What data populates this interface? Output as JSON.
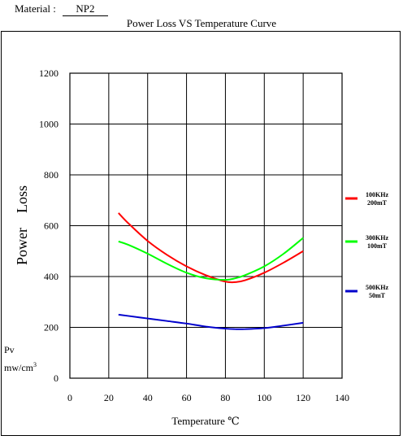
{
  "header": {
    "material_label": "Material :",
    "material_value": "NP2"
  },
  "chart_data": {
    "type": "line",
    "title": "Power Loss VS Temperature  Curve",
    "xlabel": "Temperature  ℃",
    "ylabel": "Power    Loss",
    "y_unit_line1": "Pv",
    "y_unit_line2": "mw/cm",
    "y_unit_sup": "3",
    "xlim": [
      0,
      140
    ],
    "ylim": [
      0,
      1200
    ],
    "x_ticks": [
      0,
      20,
      40,
      60,
      80,
      100,
      120,
      140
    ],
    "y_ticks": [
      0,
      200,
      400,
      600,
      800,
      1000,
      1200
    ],
    "grid": true,
    "legend_position": "right",
    "series": [
      {
        "name": "100KHz 200mT",
        "legend_line1": "100KHz",
        "legend_line2": "200mT",
        "color": "#ff0000",
        "x": [
          25,
          30,
          40,
          50,
          60,
          70,
          80,
          85,
          90,
          100,
          110,
          120
        ],
        "values": [
          650,
          610,
          540,
          485,
          440,
          405,
          380,
          378,
          385,
          415,
          455,
          500
        ]
      },
      {
        "name": "300KHz 100mT",
        "legend_line1": "300KHz",
        "legend_line2": "100mT",
        "color": "#00ff00",
        "x": [
          25,
          30,
          40,
          50,
          60,
          70,
          80,
          85,
          90,
          100,
          110,
          120
        ],
        "values": [
          538,
          525,
          490,
          450,
          415,
          393,
          387,
          393,
          405,
          440,
          490,
          552
        ]
      },
      {
        "name": "500KHz 50mT",
        "legend_line1": "500KHz",
        "legend_line2": "50mT",
        "color": "#0000cc",
        "x": [
          25,
          30,
          40,
          50,
          60,
          70,
          80,
          85,
          90,
          100,
          110,
          120
        ],
        "values": [
          250,
          245,
          235,
          225,
          215,
          203,
          195,
          193,
          193,
          197,
          207,
          218
        ]
      }
    ]
  }
}
